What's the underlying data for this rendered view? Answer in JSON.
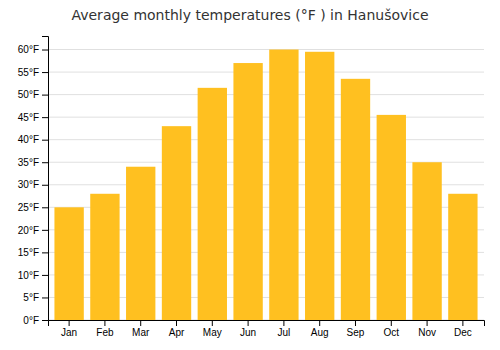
{
  "chart_data": {
    "type": "bar",
    "title": "Average monthly temperatures (°F ) in Hanušovice",
    "categories": [
      "Jan",
      "Feb",
      "Mar",
      "Apr",
      "May",
      "Jun",
      "Jul",
      "Aug",
      "Sep",
      "Oct",
      "Nov",
      "Dec"
    ],
    "values": [
      25.0,
      28.0,
      34.0,
      43.0,
      51.5,
      57.0,
      60.0,
      59.5,
      53.5,
      45.5,
      35.0,
      28.0
    ],
    "color": "#FFC020",
    "ylim": [
      0,
      63
    ],
    "yticks": [
      {
        "value": 0,
        "label": "0°F"
      },
      {
        "value": 5,
        "label": "5°F"
      },
      {
        "value": 10,
        "label": "10°F"
      },
      {
        "value": 15,
        "label": "15°F"
      },
      {
        "value": 20,
        "label": "20°F"
      },
      {
        "value": 25,
        "label": "25°F"
      },
      {
        "value": 30,
        "label": "30°F"
      },
      {
        "value": 35,
        "label": "35°F"
      },
      {
        "value": 40,
        "label": "40°F"
      },
      {
        "value": 45,
        "label": "45°F"
      },
      {
        "value": 50,
        "label": "50°F"
      },
      {
        "value": 55,
        "label": "55°F"
      },
      {
        "value": 60,
        "label": "60°F"
      }
    ],
    "grid": true
  }
}
